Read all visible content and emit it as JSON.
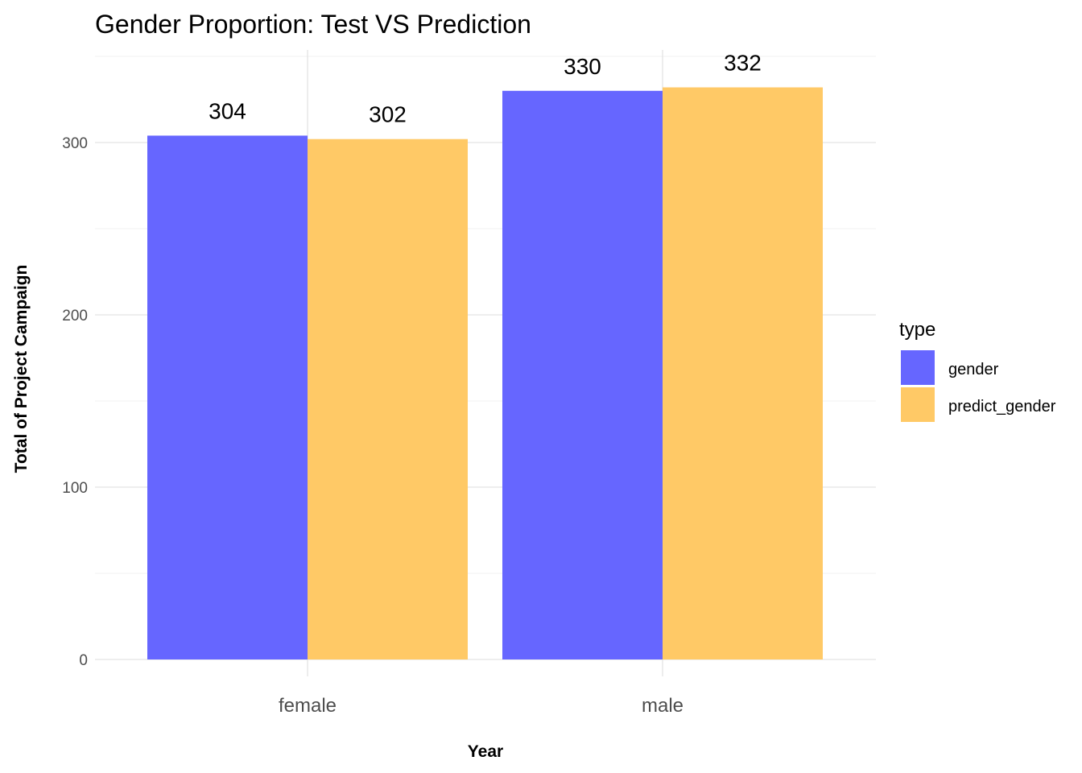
{
  "chart_data": {
    "type": "bar",
    "title": "Gender Proportion: Test VS Prediction",
    "xlabel": "Year",
    "ylabel": "Total of Project Campaign",
    "categories": [
      "female",
      "male"
    ],
    "series": [
      {
        "name": "gender",
        "values": [
          304,
          330
        ],
        "color": "#6666ff"
      },
      {
        "name": "predict_gender",
        "values": [
          302,
          332
        ],
        "color": "#ffc966"
      }
    ],
    "ylim": [
      0,
      350
    ],
    "yticks": [
      0,
      100,
      200,
      300
    ],
    "grid": true,
    "legend": {
      "title": "type",
      "position": "right"
    }
  }
}
